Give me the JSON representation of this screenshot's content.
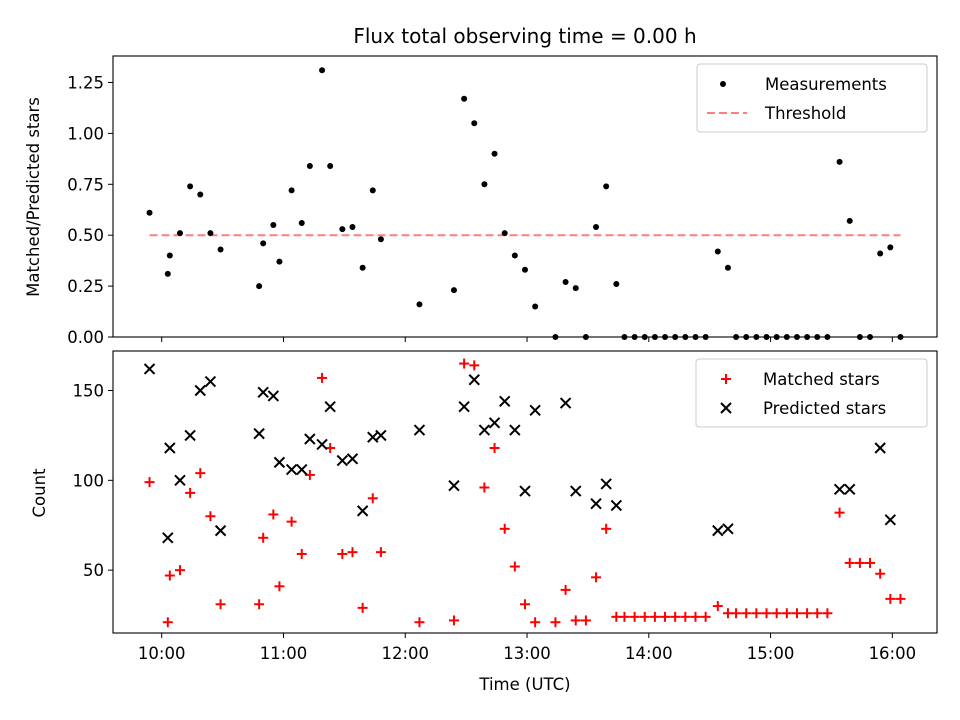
{
  "chart_data": [
    {
      "type": "scatter",
      "title": "Flux total observing time = 0.00 h",
      "xlabel": "",
      "ylabel": "Matched/Predicted stars",
      "xlim": [
        "09:36",
        "16:22"
      ],
      "ylim": [
        0,
        1.38
      ],
      "yticks": [
        "0.00",
        "0.25",
        "0.50",
        "0.75",
        "1.00",
        "1.25"
      ],
      "grid": false,
      "legend_position": "top-right",
      "colors": {
        "measurements": "#000000",
        "threshold": "#ff7f7f"
      },
      "series": [
        {
          "name": "Measurements",
          "kind": "points",
          "points": [
            [
              "09:54",
              0.61
            ],
            [
              "10:03",
              0.31
            ],
            [
              "10:04",
              0.4
            ],
            [
              "10:09",
              0.51
            ],
            [
              "10:14",
              0.74
            ],
            [
              "10:19",
              0.7
            ],
            [
              "10:24",
              0.51
            ],
            [
              "10:29",
              0.43
            ],
            [
              "10:48",
              0.25
            ],
            [
              "10:50",
              0.46
            ],
            [
              "10:55",
              0.55
            ],
            [
              "10:58",
              0.37
            ],
            [
              "11:04",
              0.72
            ],
            [
              "11:09",
              0.56
            ],
            [
              "11:13",
              0.84
            ],
            [
              "11:19",
              1.31
            ],
            [
              "11:23",
              0.84
            ],
            [
              "11:29",
              0.53
            ],
            [
              "11:34",
              0.54
            ],
            [
              "11:39",
              0.34
            ],
            [
              "11:44",
              0.72
            ],
            [
              "11:48",
              0.48
            ],
            [
              "12:07",
              0.16
            ],
            [
              "12:24",
              0.23
            ],
            [
              "12:29",
              1.17
            ],
            [
              "12:34",
              1.05
            ],
            [
              "12:39",
              0.75
            ],
            [
              "12:44",
              0.9
            ],
            [
              "12:49",
              0.51
            ],
            [
              "12:54",
              0.4
            ],
            [
              "12:59",
              0.33
            ],
            [
              "13:04",
              0.15
            ],
            [
              "13:14",
              0.0
            ],
            [
              "13:19",
              0.27
            ],
            [
              "13:24",
              0.24
            ],
            [
              "13:29",
              0.0
            ],
            [
              "13:34",
              0.54
            ],
            [
              "13:39",
              0.74
            ],
            [
              "13:44",
              0.26
            ],
            [
              "13:48",
              0.0
            ],
            [
              "13:53",
              0.0
            ],
            [
              "13:58",
              0.0
            ],
            [
              "14:03",
              0.0
            ],
            [
              "14:08",
              0.0
            ],
            [
              "14:13",
              0.0
            ],
            [
              "14:18",
              0.0
            ],
            [
              "14:23",
              0.0
            ],
            [
              "14:28",
              0.0
            ],
            [
              "14:34",
              0.42
            ],
            [
              "14:39",
              0.34
            ],
            [
              "14:43",
              0.0
            ],
            [
              "14:48",
              0.0
            ],
            [
              "14:53",
              0.0
            ],
            [
              "14:58",
              0.0
            ],
            [
              "15:03",
              0.0
            ],
            [
              "15:08",
              0.0
            ],
            [
              "15:13",
              0.0
            ],
            [
              "15:18",
              0.0
            ],
            [
              "15:23",
              0.0
            ],
            [
              "15:28",
              0.0
            ],
            [
              "15:34",
              0.86
            ],
            [
              "15:39",
              0.57
            ],
            [
              "15:44",
              0.0
            ],
            [
              "15:49",
              0.0
            ],
            [
              "15:54",
              0.41
            ],
            [
              "15:59",
              0.44
            ],
            [
              "16:04",
              0.0
            ]
          ]
        },
        {
          "name": "Threshold",
          "kind": "dashed-line",
          "points": [
            [
              "09:54",
              0.5
            ],
            [
              "16:04",
              0.5
            ]
          ]
        }
      ]
    },
    {
      "type": "scatter",
      "title": "",
      "xlabel": "Time (UTC)",
      "ylabel": "Count",
      "xlim": [
        "09:36",
        "16:22"
      ],
      "ylim": [
        15,
        172
      ],
      "yticks": [
        "50",
        "100",
        "150"
      ],
      "xticks": [
        "10:00",
        "11:00",
        "12:00",
        "13:00",
        "14:00",
        "15:00",
        "16:00"
      ],
      "grid": false,
      "legend_position": "top-right",
      "colors": {
        "matched": "#ff0000",
        "predicted": "#000000"
      },
      "series": [
        {
          "name": "Matched stars",
          "marker": "plus",
          "points": [
            [
              "09:54",
              99
            ],
            [
              "10:03",
              21
            ],
            [
              "10:04",
              47
            ],
            [
              "10:09",
              50
            ],
            [
              "10:14",
              93
            ],
            [
              "10:19",
              104
            ],
            [
              "10:24",
              80
            ],
            [
              "10:29",
              31
            ],
            [
              "10:48",
              31
            ],
            [
              "10:50",
              68
            ],
            [
              "10:55",
              81
            ],
            [
              "10:58",
              41
            ],
            [
              "11:04",
              77
            ],
            [
              "11:09",
              59
            ],
            [
              "11:13",
              103
            ],
            [
              "11:19",
              157
            ],
            [
              "11:23",
              118
            ],
            [
              "11:29",
              59
            ],
            [
              "11:34",
              60
            ],
            [
              "11:39",
              29
            ],
            [
              "11:44",
              90
            ],
            [
              "11:48",
              60
            ],
            [
              "12:07",
              21
            ],
            [
              "12:24",
              22
            ],
            [
              "12:29",
              165
            ],
            [
              "12:34",
              164
            ],
            [
              "12:39",
              96
            ],
            [
              "12:44",
              118
            ],
            [
              "12:49",
              73
            ],
            [
              "12:54",
              52
            ],
            [
              "12:59",
              31
            ],
            [
              "13:04",
              21
            ],
            [
              "13:14",
              21
            ],
            [
              "13:19",
              39
            ],
            [
              "13:24",
              22
            ],
            [
              "13:29",
              22
            ],
            [
              "13:34",
              46
            ],
            [
              "13:39",
              73
            ],
            [
              "13:44",
              24
            ],
            [
              "13:48",
              24
            ],
            [
              "13:53",
              24
            ],
            [
              "13:58",
              24
            ],
            [
              "14:03",
              24
            ],
            [
              "14:08",
              24
            ],
            [
              "14:13",
              24
            ],
            [
              "14:18",
              24
            ],
            [
              "14:23",
              24
            ],
            [
              "14:28",
              24
            ],
            [
              "14:34",
              30
            ],
            [
              "14:39",
              26
            ],
            [
              "14:43",
              26
            ],
            [
              "14:48",
              26
            ],
            [
              "14:53",
              26
            ],
            [
              "14:58",
              26
            ],
            [
              "15:03",
              26
            ],
            [
              "15:08",
              26
            ],
            [
              "15:13",
              26
            ],
            [
              "15:18",
              26
            ],
            [
              "15:23",
              26
            ],
            [
              "15:28",
              26
            ],
            [
              "15:34",
              82
            ],
            [
              "15:39",
              54
            ],
            [
              "15:44",
              54
            ],
            [
              "15:49",
              54
            ],
            [
              "15:54",
              48
            ],
            [
              "15:59",
              34
            ],
            [
              "16:04",
              34
            ]
          ]
        },
        {
          "name": "Predicted stars",
          "marker": "cross",
          "points": [
            [
              "09:54",
              162
            ],
            [
              "10:03",
              68
            ],
            [
              "10:04",
              118
            ],
            [
              "10:09",
              100
            ],
            [
              "10:14",
              125
            ],
            [
              "10:19",
              150
            ],
            [
              "10:24",
              155
            ],
            [
              "10:29",
              72
            ],
            [
              "10:48",
              126
            ],
            [
              "10:50",
              149
            ],
            [
              "10:55",
              147
            ],
            [
              "10:58",
              110
            ],
            [
              "11:04",
              106
            ],
            [
              "11:09",
              106
            ],
            [
              "11:13",
              123
            ],
            [
              "11:19",
              120
            ],
            [
              "11:23",
              141
            ],
            [
              "11:29",
              111
            ],
            [
              "11:34",
              112
            ],
            [
              "11:39",
              83
            ],
            [
              "11:44",
              124
            ],
            [
              "11:48",
              125
            ],
            [
              "12:07",
              128
            ],
            [
              "12:24",
              97
            ],
            [
              "12:29",
              141
            ],
            [
              "12:34",
              156
            ],
            [
              "12:39",
              128
            ],
            [
              "12:44",
              132
            ],
            [
              "12:49",
              144
            ],
            [
              "12:54",
              128
            ],
            [
              "12:59",
              94
            ],
            [
              "13:04",
              139
            ],
            [
              "13:19",
              143
            ],
            [
              "13:24",
              94
            ],
            [
              "13:34",
              87
            ],
            [
              "13:39",
              98
            ],
            [
              "13:44",
              86
            ],
            [
              "14:34",
              72
            ],
            [
              "14:39",
              73
            ],
            [
              "15:34",
              95
            ],
            [
              "15:39",
              95
            ],
            [
              "15:54",
              118
            ],
            [
              "15:59",
              78
            ]
          ]
        }
      ]
    }
  ]
}
